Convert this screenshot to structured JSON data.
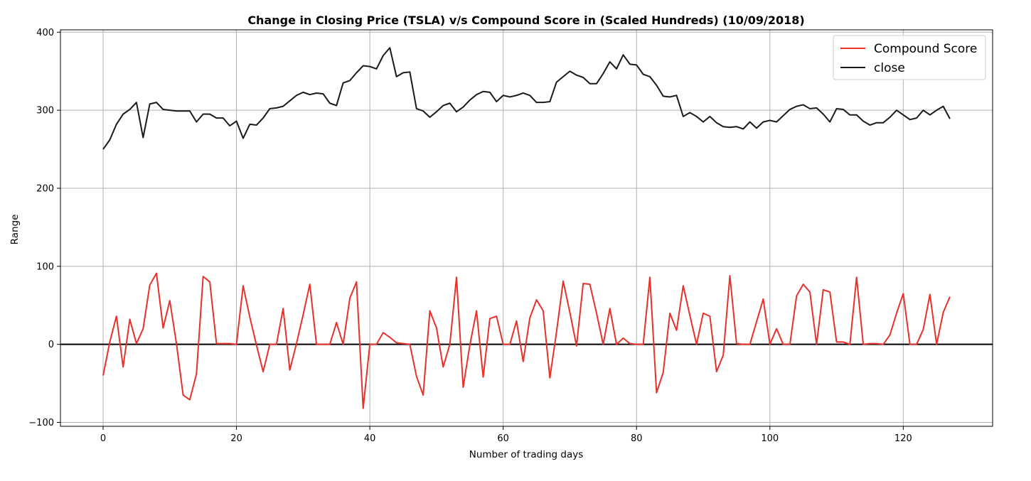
{
  "chart_data": {
    "type": "line",
    "title": "Change in Closing Price (TSLA) v/s Compound Score in (Scaled Hundreds) (10/09/2018)",
    "xlabel": "Number of trading days",
    "ylabel": "Range",
    "xlim": [
      -6.4,
      133.4
    ],
    "ylim": [
      -105,
      403
    ],
    "xticks": [
      0,
      20,
      40,
      60,
      80,
      100,
      120
    ],
    "yticks": [
      -100,
      0,
      100,
      200,
      300,
      400
    ],
    "xtick_labels": [
      "0",
      "20",
      "40",
      "60",
      "80",
      "100",
      "120"
    ],
    "ytick_labels": [
      "−100",
      "0",
      "100",
      "200",
      "300",
      "400"
    ],
    "grid": true,
    "legend_position": "top-right",
    "hline": 0,
    "hline_color": "#000000",
    "series": [
      {
        "name": "Compound Score",
        "color": "#e8312a",
        "values": [
          -40,
          3,
          36,
          -29,
          32,
          1,
          20,
          76,
          91,
          21,
          56,
          1,
          -65,
          -71,
          -38,
          87,
          80,
          1,
          1,
          1,
          0,
          75,
          35,
          -1,
          -35,
          0,
          0,
          46,
          -33,
          1,
          38,
          77,
          0,
          0,
          0,
          28,
          0,
          59,
          80,
          -82,
          0,
          0,
          15,
          9,
          2,
          1,
          0,
          -41,
          -65,
          43,
          21,
          -29,
          0,
          86,
          -55,
          -1,
          43,
          -42,
          33,
          36,
          0,
          0,
          30,
          -22,
          34,
          57,
          43,
          -43,
          16,
          81,
          41,
          -2,
          78,
          77,
          40,
          0,
          46,
          0,
          8,
          1,
          0,
          0,
          86,
          -62,
          -36,
          40,
          18,
          75,
          37,
          0,
          40,
          36,
          -35,
          -14,
          88,
          1,
          0,
          0,
          29,
          58,
          0,
          20,
          0,
          0,
          62,
          77,
          67,
          0,
          70,
          67,
          3,
          3,
          0,
          86,
          0,
          1,
          1,
          0,
          12,
          40,
          65,
          0,
          0,
          19,
          64,
          0,
          41,
          61
        ]
      },
      {
        "name": "close",
        "color": "#1a1a1a",
        "values": [
          250,
          262,
          282,
          295,
          301,
          310,
          265,
          308,
          310,
          301,
          300,
          299,
          299,
          299,
          285,
          295,
          295,
          290,
          290,
          280,
          286,
          264,
          282,
          281,
          290,
          302,
          303,
          305,
          312,
          319,
          323,
          320,
          322,
          321,
          309,
          306,
          335,
          338,
          348,
          357,
          356,
          353,
          370,
          380,
          343,
          348,
          349,
          302,
          299,
          291,
          298,
          306,
          309,
          298,
          304,
          313,
          320,
          324,
          323,
          311,
          319,
          317,
          319,
          322,
          319,
          310,
          310,
          311,
          336,
          343,
          350,
          345,
          342,
          334,
          334,
          347,
          362,
          353,
          371,
          359,
          358,
          346,
          343,
          332,
          318,
          317,
          319,
          292,
          297,
          292,
          285,
          292,
          284,
          279,
          278,
          279,
          276,
          285,
          277,
          285,
          287,
          285,
          293,
          301,
          305,
          307,
          302,
          303,
          295,
          285,
          302,
          301,
          294,
          294,
          286,
          281,
          284,
          284,
          291,
          300,
          294,
          288,
          290,
          300,
          294,
          300,
          305,
          289
        ]
      }
    ]
  }
}
